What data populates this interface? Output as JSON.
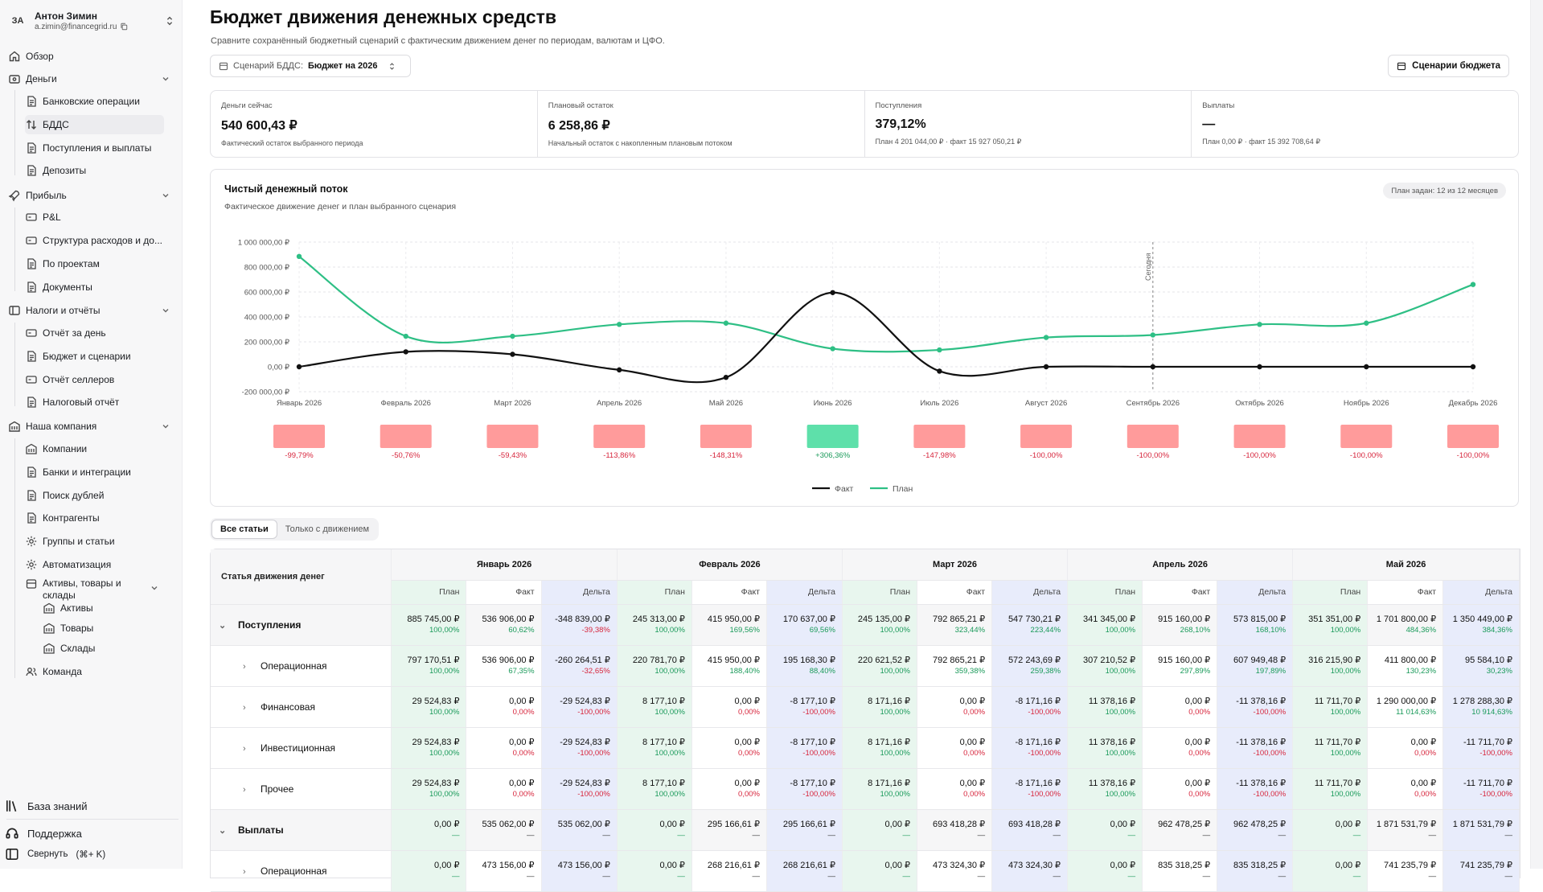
{
  "user": {
    "initials": "ЗА",
    "name": "Антон Зимин",
    "email": "a.zimin@financegrid.ru"
  },
  "nav": {
    "overview": "Обзор",
    "money": "Деньги",
    "money_items": [
      "Банковские операции",
      "БДДС",
      "Поступления и выплаты",
      "Депозиты"
    ],
    "profit": "Прибыль",
    "profit_items": [
      "P&L",
      "Структура расходов и до...",
      "По проектам",
      "Документы"
    ],
    "taxes": "Налоги и отчёты",
    "taxes_items": [
      "Отчёт за день",
      "Бюджет и сценарии",
      "Отчёт селлеров",
      "Налоговый отчёт"
    ],
    "company": "Наша компания",
    "company_items": [
      "Компании",
      "Банки и интеграции",
      "Поиск дублей",
      "Контрагенты",
      "Группы и статьи",
      "Автоматизация",
      "Активы, товары и склады"
    ],
    "assets_items": [
      "Активы",
      "Товары",
      "Склады"
    ],
    "team": "Команда",
    "knowledge": "База знаний",
    "support": "Поддержка",
    "collapse": "Свернуть",
    "collapse_hint": "(⌘+ K)"
  },
  "page": {
    "title": "Бюджет движения денежных средств",
    "subtitle": "Сравните сохранённый бюджетный сценарий с фактическим движением денег по периодам, валютам и ЦФО.",
    "scenario_label": "Сценарий БДДС:",
    "scenario_value": "Бюджет на 2026",
    "scenarios_button": "Сценарии бюджета"
  },
  "kpis": [
    {
      "label": "Деньги сейчас",
      "value": "540 600,43 ₽",
      "note": "Фактический остаток выбранного периода"
    },
    {
      "label": "Плановый остаток",
      "value": "6 258,86 ₽",
      "note": "Начальный остаток с накопленным плановым потоком"
    },
    {
      "label": "Поступления",
      "value": "379,12%",
      "note": "План 4 201 044,00 ₽ · факт 15 927 050,21 ₽"
    },
    {
      "label": "Выплаты",
      "value": "—",
      "note": "План 0,00 ₽ · факт 15 392 708,64 ₽"
    }
  ],
  "chart": {
    "title": "Чистый денежный поток",
    "subtitle": "Фактическое движение денег и план выбранного сценария",
    "badge": "План задан: 12 из 12 месяцев",
    "today_label": "Сегодня",
    "legend_fact": "Факт",
    "legend_plan": "План",
    "colors": {
      "fact": "#111111",
      "plan": "#2ebf85",
      "neg_bar": "#ff9b9b",
      "pos_bar": "#5ee0aa"
    }
  },
  "chart_data": {
    "type": "line",
    "categories": [
      "Январь 2026",
      "Февраль 2026",
      "Март 2026",
      "Апрель 2026",
      "Май 2026",
      "Июнь 2026",
      "Июль 2026",
      "Август 2026",
      "Сентябрь 2026",
      "Октябрь 2026",
      "Ноябрь 2026",
      "Декабрь 2026"
    ],
    "series": [
      {
        "name": "Факт",
        "values": [
          0,
          120000,
          100000,
          -25000,
          -85000,
          595000,
          -35000,
          0,
          0,
          0,
          0,
          0
        ]
      },
      {
        "name": "План",
        "values": [
          885000,
          245000,
          245000,
          340000,
          350000,
          145000,
          135000,
          235000,
          255000,
          340000,
          350000,
          660000
        ]
      }
    ],
    "yticks": [
      "1 000 000,00 ₽",
      "800 000,00 ₽",
      "600 000,00 ₽",
      "400 000,00 ₽",
      "200 000,00 ₽",
      "0,00 ₽",
      "-200 000,00 ₽"
    ],
    "ylim": [
      -200000,
      1000000
    ],
    "today_index": 8,
    "deviation_pct": [
      -99.79,
      -50.76,
      -59.43,
      -113.86,
      -148.31,
      306.36,
      -147.98,
      -100,
      -100,
      -100,
      -100,
      -100
    ],
    "deviation_labels": [
      "-99,79%",
      "-50,76%",
      "-59,43%",
      "-113,86%",
      "-148,31%",
      "+306,36%",
      "-147,98%",
      "-100,00%",
      "-100,00%",
      "-100,00%",
      "-100,00%",
      "-100,00%"
    ]
  },
  "table": {
    "tabs": [
      "Все статьи",
      "Только с движением"
    ],
    "name_header": "Статья движения денег",
    "sub_headers": [
      "План",
      "Факт",
      "Дельта"
    ],
    "months": [
      "Январь 2026",
      "Февраль 2026",
      "Март 2026",
      "Апрель 2026",
      "Май 2026"
    ],
    "rows": [
      {
        "name": "Поступления",
        "level": 1,
        "cells": [
          [
            "885 745,00 ₽",
            "100,00%",
            "536 906,00 ₽",
            "60,62%",
            "-348 839,00 ₽",
            "-39,38%"
          ],
          [
            "245 313,00 ₽",
            "100,00%",
            "415 950,00 ₽",
            "169,56%",
            "170 637,00 ₽",
            "69,56%"
          ],
          [
            "245 135,00 ₽",
            "100,00%",
            "792 865,21 ₽",
            "323,44%",
            "547 730,21 ₽",
            "223,44%"
          ],
          [
            "341 345,00 ₽",
            "100,00%",
            "915 160,00 ₽",
            "268,10%",
            "573 815,00 ₽",
            "168,10%"
          ],
          [
            "351 351,00 ₽",
            "100,00%",
            "1 701 800,00 ₽",
            "484,36%",
            "1 350 449,00 ₽",
            "384,36%"
          ]
        ]
      },
      {
        "name": "Операционная",
        "level": 2,
        "cells": [
          [
            "797 170,51 ₽",
            "100,00%",
            "536 906,00 ₽",
            "67,35%",
            "-260 264,51 ₽",
            "-32,65%"
          ],
          [
            "220 781,70 ₽",
            "100,00%",
            "415 950,00 ₽",
            "188,40%",
            "195 168,30 ₽",
            "88,40%"
          ],
          [
            "220 621,52 ₽",
            "100,00%",
            "792 865,21 ₽",
            "359,38%",
            "572 243,69 ₽",
            "259,38%"
          ],
          [
            "307 210,52 ₽",
            "100,00%",
            "915 160,00 ₽",
            "297,89%",
            "607 949,48 ₽",
            "197,89%"
          ],
          [
            "316 215,90 ₽",
            "100,00%",
            "411 800,00 ₽",
            "130,23%",
            "95 584,10 ₽",
            "30,23%"
          ]
        ]
      },
      {
        "name": "Финансовая",
        "level": 2,
        "cells": [
          [
            "29 524,83 ₽",
            "100,00%",
            "0,00 ₽",
            "0,00%",
            "-29 524,83 ₽",
            "-100,00%"
          ],
          [
            "8 177,10 ₽",
            "100,00%",
            "0,00 ₽",
            "0,00%",
            "-8 177,10 ₽",
            "-100,00%"
          ],
          [
            "8 171,16 ₽",
            "100,00%",
            "0,00 ₽",
            "0,00%",
            "-8 171,16 ₽",
            "-100,00%"
          ],
          [
            "11 378,16 ₽",
            "100,00%",
            "0,00 ₽",
            "0,00%",
            "-11 378,16 ₽",
            "-100,00%"
          ],
          [
            "11 711,70 ₽",
            "100,00%",
            "1 290 000,00 ₽",
            "11 014,63%",
            "1 278 288,30 ₽",
            "10 914,63%"
          ]
        ]
      },
      {
        "name": "Инвестиционная",
        "level": 2,
        "cells": [
          [
            "29 524,83 ₽",
            "100,00%",
            "0,00 ₽",
            "0,00%",
            "-29 524,83 ₽",
            "-100,00%"
          ],
          [
            "8 177,10 ₽",
            "100,00%",
            "0,00 ₽",
            "0,00%",
            "-8 177,10 ₽",
            "-100,00%"
          ],
          [
            "8 171,16 ₽",
            "100,00%",
            "0,00 ₽",
            "0,00%",
            "-8 171,16 ₽",
            "-100,00%"
          ],
          [
            "11 378,16 ₽",
            "100,00%",
            "0,00 ₽",
            "0,00%",
            "-11 378,16 ₽",
            "-100,00%"
          ],
          [
            "11 711,70 ₽",
            "100,00%",
            "0,00 ₽",
            "0,00%",
            "-11 711,70 ₽",
            "-100,00%"
          ]
        ]
      },
      {
        "name": "Прочее",
        "level": 2,
        "cells": [
          [
            "29 524,83 ₽",
            "100,00%",
            "0,00 ₽",
            "0,00%",
            "-29 524,83 ₽",
            "-100,00%"
          ],
          [
            "8 177,10 ₽",
            "100,00%",
            "0,00 ₽",
            "0,00%",
            "-8 177,10 ₽",
            "-100,00%"
          ],
          [
            "8 171,16 ₽",
            "100,00%",
            "0,00 ₽",
            "0,00%",
            "-8 171,16 ₽",
            "-100,00%"
          ],
          [
            "11 378,16 ₽",
            "100,00%",
            "0,00 ₽",
            "0,00%",
            "-11 378,16 ₽",
            "-100,00%"
          ],
          [
            "11 711,70 ₽",
            "100,00%",
            "0,00 ₽",
            "0,00%",
            "-11 711,70 ₽",
            "-100,00%"
          ]
        ]
      },
      {
        "name": "Выплаты",
        "level": 1,
        "cells": [
          [
            "0,00 ₽",
            "—",
            "535 062,00 ₽",
            "—",
            "535 062,00 ₽",
            "—"
          ],
          [
            "0,00 ₽",
            "—",
            "295 166,61 ₽",
            "—",
            "295 166,61 ₽",
            "—"
          ],
          [
            "0,00 ₽",
            "—",
            "693 418,28 ₽",
            "—",
            "693 418,28 ₽",
            "—"
          ],
          [
            "0,00 ₽",
            "—",
            "962 478,25 ₽",
            "—",
            "962 478,25 ₽",
            "—"
          ],
          [
            "0,00 ₽",
            "—",
            "1 871 531,79 ₽",
            "—",
            "1 871 531,79 ₽",
            "—"
          ]
        ]
      },
      {
        "name": "Операционная",
        "level": 2,
        "cells": [
          [
            "0,00 ₽",
            "—",
            "473 156,00 ₽",
            "—",
            "473 156,00 ₽",
            "—"
          ],
          [
            "0,00 ₽",
            "—",
            "268 216,61 ₽",
            "—",
            "268 216,61 ₽",
            "—"
          ],
          [
            "0,00 ₽",
            "—",
            "473 324,30 ₽",
            "—",
            "473 324,30 ₽",
            "—"
          ],
          [
            "0,00 ₽",
            "—",
            "835 318,25 ₽",
            "—",
            "835 318,25 ₽",
            "—"
          ],
          [
            "0,00 ₽",
            "—",
            "741 235,79 ₽",
            "—",
            "741 235,79 ₽",
            "—"
          ]
        ]
      }
    ]
  }
}
